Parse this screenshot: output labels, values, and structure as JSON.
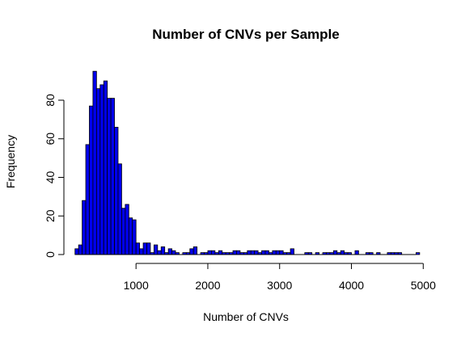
{
  "chart_data": {
    "type": "bar",
    "title": "Number of CNVs per Sample",
    "xlabel": "Number of CNVs",
    "ylabel": "Frequency",
    "bin_width": 50,
    "bin_start": 150,
    "xlim": [
      150,
      4900
    ],
    "ylim": [
      0,
      95
    ],
    "x_ticks": [
      1000,
      2000,
      3000,
      4000,
      5000
    ],
    "y_ticks": [
      0,
      20,
      40,
      60,
      80
    ],
    "grid": false,
    "legend": "none",
    "values": [
      3,
      5,
      28,
      57,
      77,
      95,
      86,
      88,
      90,
      81,
      81,
      66,
      47,
      24,
      26,
      19,
      18,
      6,
      3,
      6,
      6,
      1,
      5,
      2,
      4,
      1,
      3,
      2,
      1,
      0,
      1,
      1,
      3,
      4,
      0,
      1,
      1,
      2,
      2,
      1,
      2,
      1,
      1,
      1,
      2,
      2,
      1,
      1,
      2,
      2,
      2,
      1,
      2,
      2,
      1,
      2,
      2,
      2,
      1,
      1,
      3,
      0,
      0,
      0,
      1,
      1,
      0,
      1,
      0,
      1,
      1,
      1,
      2,
      1,
      2,
      1,
      1,
      0,
      2,
      0,
      0,
      1,
      1,
      0,
      1,
      0,
      0,
      1,
      1,
      1,
      1,
      0,
      0,
      0,
      0,
      1
    ],
    "bar_color": "#0000ee",
    "outline_color": "#000000"
  }
}
